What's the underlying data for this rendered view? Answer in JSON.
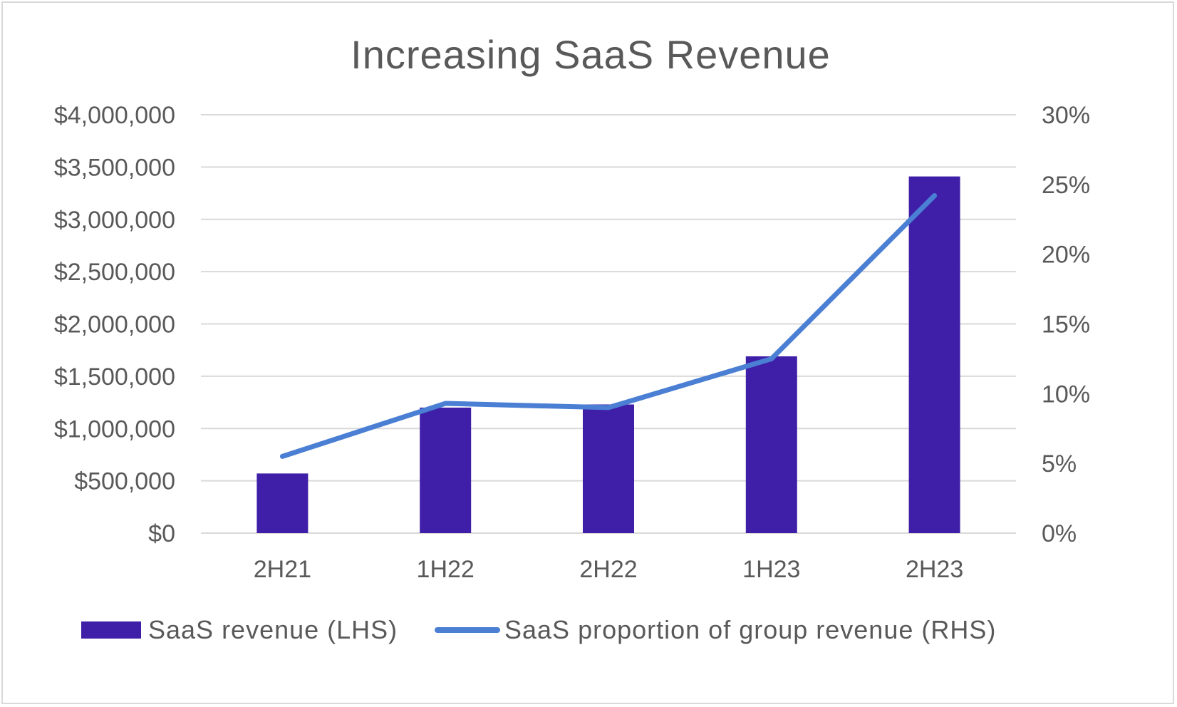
{
  "chart_data": {
    "type": "bar+line",
    "title": "Increasing SaaS Revenue",
    "categories": [
      "2H21",
      "1H22",
      "2H22",
      "1H23",
      "2H23"
    ],
    "series": [
      {
        "name": "SaaS revenue (LHS)",
        "type": "bar",
        "axis": "left",
        "color": "#3f1fa8",
        "values": [
          570000,
          1200000,
          1230000,
          1690000,
          3410000
        ]
      },
      {
        "name": "SaaS proportion of group revenue (RHS)",
        "type": "line",
        "axis": "right",
        "color": "#4a7fd4",
        "values": [
          5.5,
          9.3,
          9.0,
          12.5,
          24.2
        ]
      }
    ],
    "left_axis": {
      "min": 0,
      "max": 4000000,
      "step": 500000,
      "tick_labels": [
        "$0",
        "$500,000",
        "$1,000,000",
        "$1,500,000",
        "$2,000,000",
        "$2,500,000",
        "$3,000,000",
        "$3,500,000",
        "$4,000,000"
      ]
    },
    "right_axis": {
      "min": 0,
      "max": 30,
      "step": 5,
      "tick_labels": [
        "0%",
        "5%",
        "10%",
        "15%",
        "20%",
        "25%",
        "30%"
      ]
    },
    "grid": true,
    "legend_position": "bottom"
  }
}
